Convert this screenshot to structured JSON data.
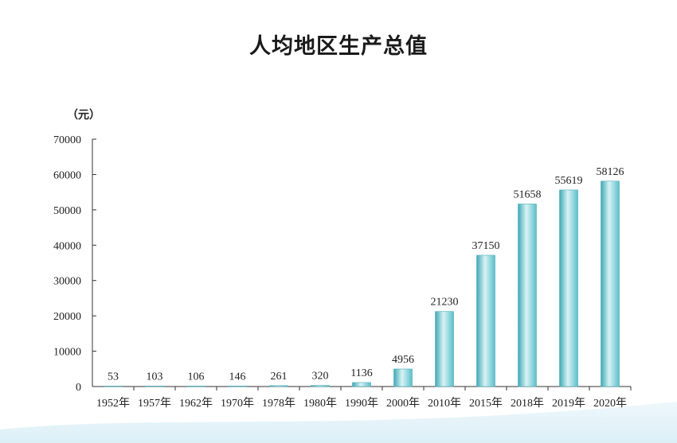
{
  "chart_data": {
    "type": "bar",
    "title": "人均地区生产总值",
    "ylabel": "（元）",
    "xlabel": "",
    "categories": [
      "1952年",
      "1957年",
      "1962年",
      "1970年",
      "1978年",
      "1980年",
      "1990年",
      "2000年",
      "2010年",
      "2015年",
      "2018年",
      "2019年",
      "2020年"
    ],
    "values": [
      53,
      103,
      106,
      146,
      261,
      320,
      1136,
      4956,
      21230,
      37150,
      51658,
      55619,
      58126
    ],
    "ylim": [
      0,
      70000
    ],
    "yticks": [
      0,
      10000,
      20000,
      30000,
      40000,
      50000,
      60000,
      70000
    ],
    "grid": false,
    "legend": "none",
    "bar_color": "#5bbfca",
    "bar_highlight": "#d8f3f5"
  }
}
